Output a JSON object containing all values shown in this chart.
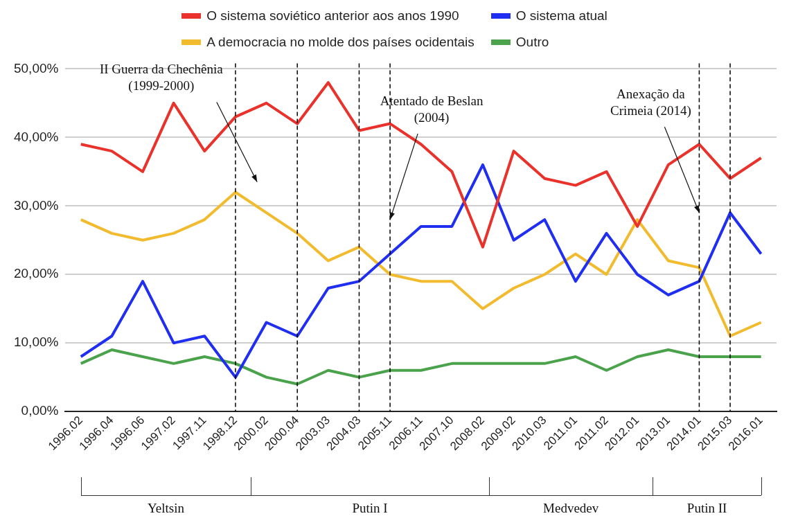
{
  "chart_data": {
    "type": "line",
    "categories": [
      "1996.02",
      "1996.04",
      "1996.06",
      "1997.02",
      "1997.11",
      "1998.12",
      "2000.02",
      "2000.04",
      "2003.03",
      "2004.03",
      "2005.11",
      "2006.11",
      "2007.10",
      "2008.02",
      "2009.02",
      "2010.03",
      "2011.01",
      "2011.02",
      "2012.01",
      "2013.01",
      "2014.01",
      "2015.03",
      "2016.01"
    ],
    "series": [
      {
        "name": "O sistema soviético anterior aos anos 1990",
        "color": "#e8322b",
        "values": [
          39,
          38,
          35,
          45,
          38,
          43,
          45,
          42,
          48,
          41,
          42,
          39,
          35,
          24,
          38,
          34,
          33,
          35,
          27,
          36,
          39,
          34,
          37
        ]
      },
      {
        "name": "O sistema atual",
        "color": "#1f2ef0",
        "values": [
          8,
          11,
          19,
          10,
          11,
          5,
          13,
          11,
          18,
          19,
          23,
          27,
          27,
          36,
          25,
          28,
          19,
          26,
          20,
          17,
          19,
          29,
          23
        ]
      },
      {
        "name": "A democracia no molde dos países ocidentais",
        "color": "#f2bb2e",
        "values": [
          28,
          26,
          25,
          26,
          28,
          32,
          29,
          26,
          22,
          24,
          20,
          19,
          19,
          15,
          18,
          20,
          23,
          20,
          28,
          22,
          21,
          11,
          13
        ]
      },
      {
        "name": "Outro",
        "color": "#4aa24a",
        "values": [
          7,
          9,
          8,
          7,
          8,
          7,
          5,
          4,
          6,
          5,
          6,
          6,
          7,
          7,
          7,
          7,
          8,
          6,
          8,
          9,
          8,
          8,
          8
        ]
      }
    ],
    "ylim": [
      0,
      50
    ],
    "yticks": [
      {
        "value": 0,
        "label": "0,00%"
      },
      {
        "value": 10,
        "label": "10,00%"
      },
      {
        "value": 20,
        "label": "20,00%"
      },
      {
        "value": 30,
        "label": "30,00%"
      },
      {
        "value": 40,
        "label": "40,00%"
      },
      {
        "value": 50,
        "label": "50,00%"
      }
    ],
    "grid": "y",
    "legend": "top",
    "marker": "none",
    "line_style": "solid",
    "ref_lines": [
      {
        "axis": "x",
        "value": "1998.12",
        "line_style": "dashed",
        "color": "#000000"
      },
      {
        "axis": "x",
        "value": "2000.04",
        "line_style": "dashed",
        "color": "#000000"
      },
      {
        "axis": "x",
        "value": "2004.03",
        "line_style": "dashed",
        "color": "#000000"
      },
      {
        "axis": "x",
        "value": "2005.11",
        "line_style": "dashed",
        "color": "#000000"
      },
      {
        "axis": "x",
        "value": "2014.01",
        "line_style": "dashed",
        "color": "#000000"
      },
      {
        "axis": "x",
        "value": "2015.03",
        "line_style": "dashed",
        "color": "#000000"
      }
    ],
    "annotations": [
      "II Guerra da Chechênia\n(1999-2000)",
      {
        "text": "Atentado de Beslan\n(2004)",
        "x": "2005.11",
        "y": 28
      },
      {
        "text": "Anexação da\nCrimeia (2014)",
        "x": "2014.01",
        "y": 29
      },
      "Yeltsin",
      "Putin I",
      "Medvedev",
      "Putin II"
    ]
  }
}
